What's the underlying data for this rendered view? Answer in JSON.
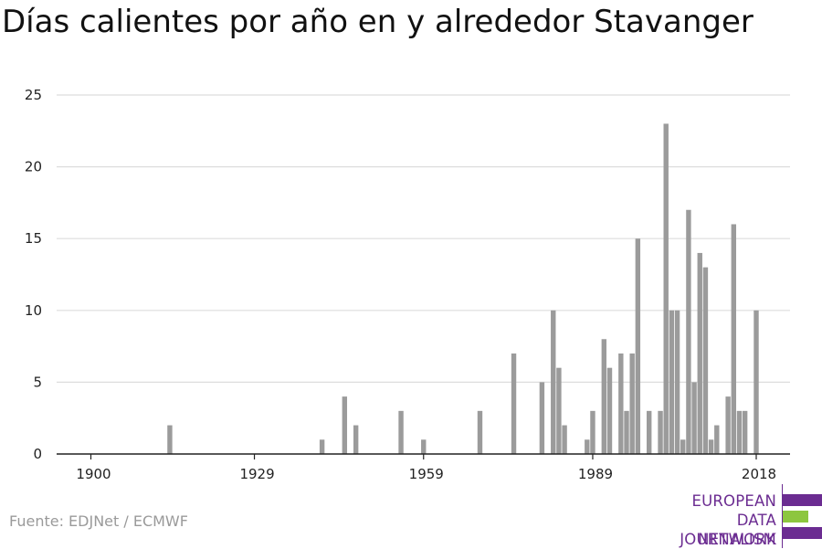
{
  "title": "Días calientes por año en y alrededor Stavanger",
  "source": "Fuente: EDJNet / ECMWF",
  "logo": {
    "lines": [
      "EUROPEAN",
      "DATA JOURNALISM",
      "NETWORK"
    ],
    "colors": {
      "purple": "#6b2c91",
      "green": "#8dc63f"
    }
  },
  "colors": {
    "bar": "#9b9b9b",
    "grid": "#dddddd",
    "axis": "#222222",
    "text": "#222222"
  },
  "chart_data": {
    "type": "bar",
    "title": "Días calientes por año en y alrededor Stavanger",
    "xlabel": "",
    "ylabel": "",
    "xlim": [
      1900,
      2018
    ],
    "ylim": [
      0,
      25
    ],
    "x_ticks": [
      1900,
      1929,
      1959,
      1989,
      2018
    ],
    "y_ticks": [
      0,
      5,
      10,
      15,
      20,
      25
    ],
    "grid": true,
    "x": [
      1914,
      1941,
      1945,
      1947,
      1955,
      1959,
      1969,
      1975,
      1980,
      1982,
      1983,
      1984,
      1988,
      1989,
      1991,
      1992,
      1994,
      1995,
      1996,
      1997,
      1999,
      2001,
      2002,
      2003,
      2004,
      2005,
      2006,
      2007,
      2008,
      2009,
      2010,
      2011,
      2013,
      2014,
      2015,
      2016,
      2018
    ],
    "values": [
      2,
      1,
      4,
      2,
      3,
      1,
      3,
      7,
      5,
      10,
      6,
      2,
      1,
      3,
      8,
      6,
      7,
      3,
      7,
      15,
      3,
      3,
      23,
      10,
      10,
      1,
      17,
      5,
      14,
      13,
      1,
      2,
      4,
      16,
      3,
      3,
      10
    ]
  }
}
